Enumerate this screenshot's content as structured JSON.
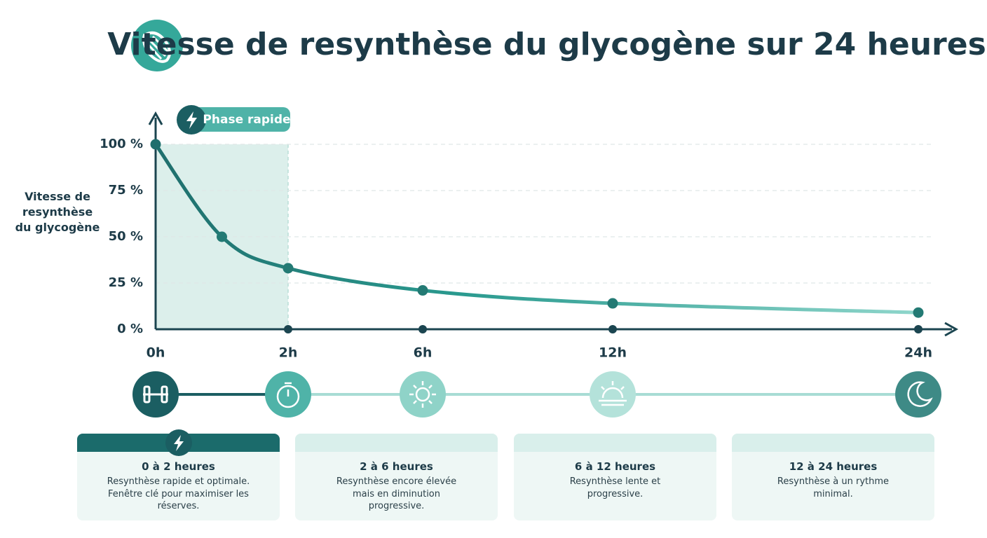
{
  "chart_data": {
    "type": "line",
    "title": "Vitesse de resynthèse du glycogène sur 24 heures",
    "y_label": "Vitesse de resynthèse du glycogène",
    "x": [
      0,
      1,
      2,
      6,
      12,
      24
    ],
    "series": [
      {
        "name": "Vitesse de resynthèse",
        "color": "#237a74",
        "values": [
          100,
          50,
          33,
          21,
          14,
          9
        ]
      }
    ],
    "xlim": [
      0,
      24
    ],
    "xticks": [
      {
        "value": 0,
        "label": "0h"
      },
      {
        "value": 2,
        "label": "2h"
      },
      {
        "value": 6,
        "label": "6h"
      },
      {
        "value": 12,
        "label": "12h"
      },
      {
        "value": 24,
        "label": "24h"
      }
    ],
    "ylim": [
      0,
      100
    ],
    "yticks": [
      {
        "value": 0,
        "label": "0 %"
      },
      {
        "value": 25,
        "label": "25 %"
      },
      {
        "value": 50,
        "label": "50 %"
      },
      {
        "value": 75,
        "label": "75 %"
      },
      {
        "value": 100,
        "label": "100 %"
      }
    ],
    "grid": true,
    "shade": {
      "label": "Phase rapide",
      "from": 0,
      "to": 2,
      "color": "#dcefeb"
    }
  },
  "phases": [
    {
      "title": "0 à 2 heures",
      "text": "Resynthèse rapide et optimale. Fenêtre clé pour maximiser les réserves."
    },
    {
      "title": "2 à 6 heures",
      "text": "Resynthèse encore élevée mais en diminution progressive."
    },
    {
      "title": "6 à 12 heures",
      "text": "Resynthèse lente et progressive."
    },
    {
      "title": "12 à 24 heures",
      "text": "Resynthèse à un rythme minimal."
    }
  ]
}
